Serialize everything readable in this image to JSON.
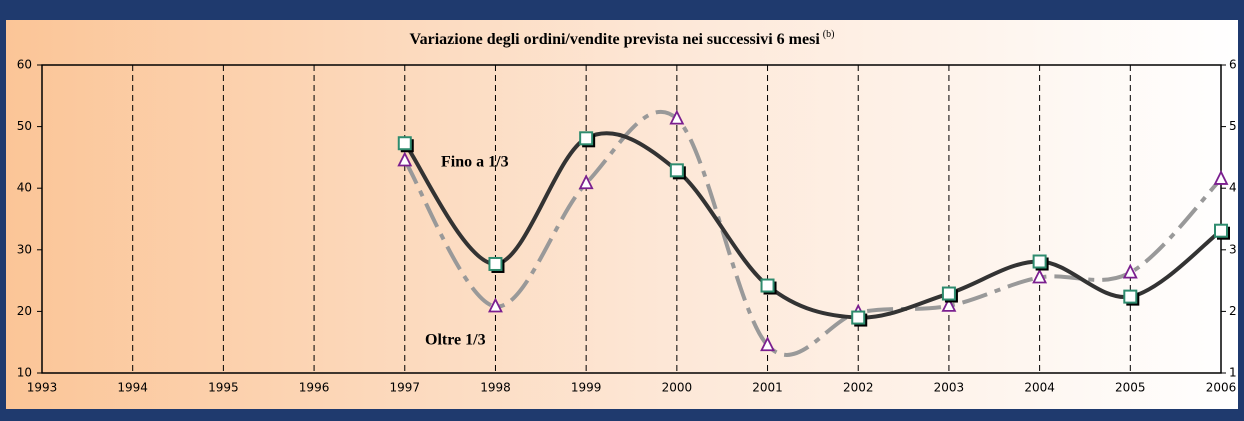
{
  "chart_data": {
    "type": "line",
    "title": "Variazione degli ordini/vendite prevista nei successivi 6 mesi",
    "title_note": "(b)",
    "x": [
      1993,
      1994,
      1995,
      1996,
      1997,
      1998,
      1999,
      2000,
      2001,
      2002,
      2003,
      2004,
      2005,
      2006
    ],
    "xlim": [
      1993,
      2006
    ],
    "xticks": [
      1993,
      1994,
      1995,
      1996,
      1997,
      1998,
      1999,
      2000,
      2001,
      2002,
      2003,
      2004,
      2005,
      2006
    ],
    "ylim": [
      10,
      60
    ],
    "yticks": [
      10,
      20,
      30,
      40,
      50,
      60
    ],
    "y2lim": [
      1,
      6
    ],
    "y2ticks": [
      1,
      2,
      3,
      4,
      5,
      6
    ],
    "grid": true,
    "series": [
      {
        "name": "Fino a 1/3",
        "color": "#333333",
        "marker_color": "#2e8b6e",
        "values": [
          null,
          null,
          null,
          null,
          47.3,
          27.7,
          48.1,
          42.9,
          24.2,
          19.0,
          22.9,
          28.1,
          22.4,
          33.1
        ]
      },
      {
        "name": "Oltre 1/3",
        "color": "#999999",
        "marker_color": "#7b1f8f",
        "values": [
          null,
          null,
          null,
          null,
          44.5,
          20.8,
          40.8,
          51.3,
          14.5,
          19.8,
          20.9,
          25.5,
          26.3,
          41.5
        ]
      }
    ]
  }
}
